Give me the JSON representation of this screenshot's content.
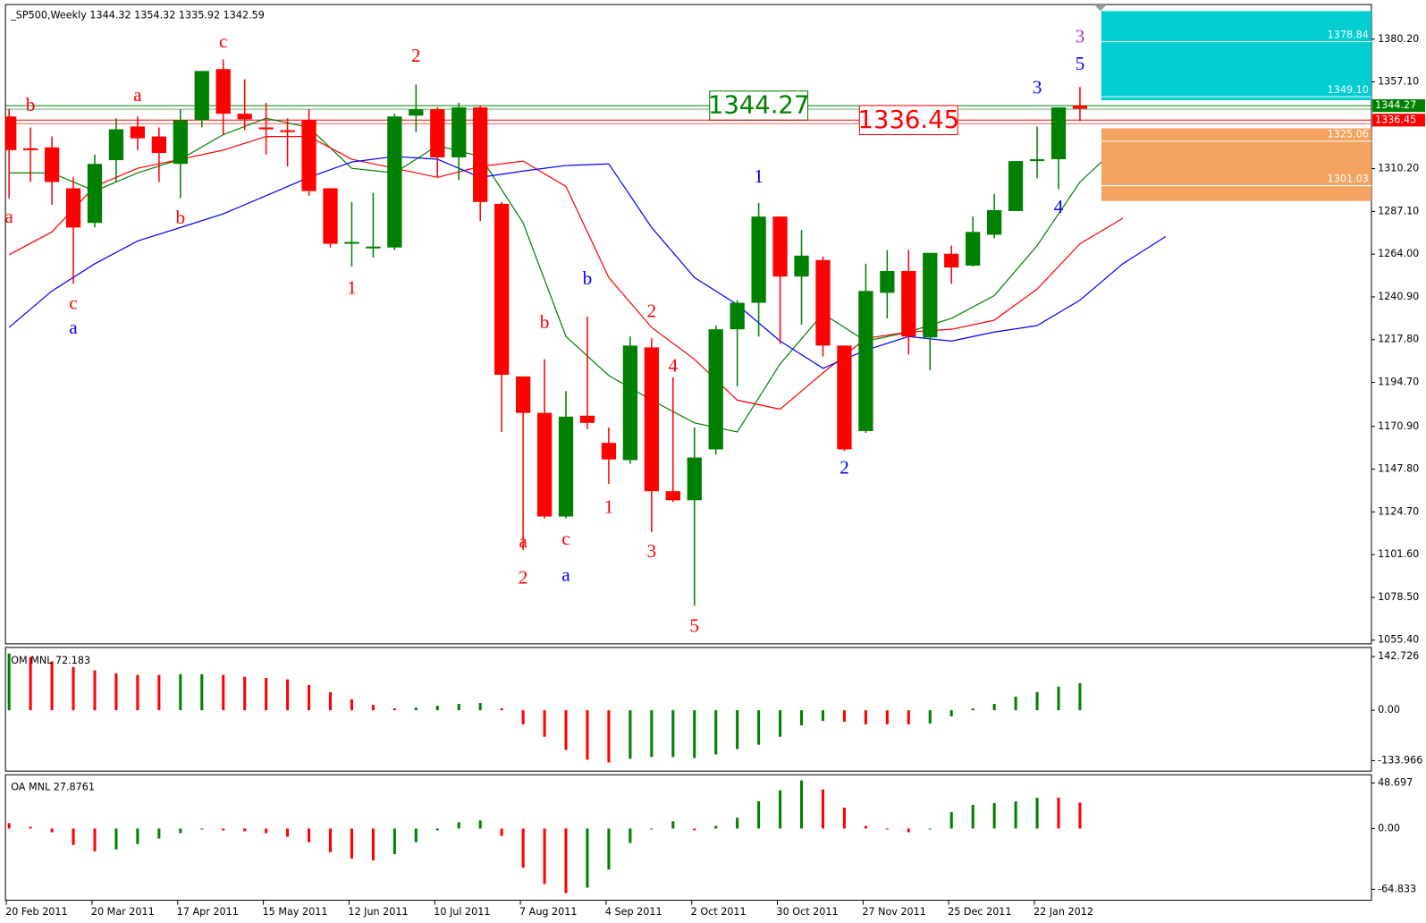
{
  "chart_data": [
    {
      "type": "candlestick",
      "title": "_SP500,Weekly 1344.32 1354.32 1335.92 1342.59",
      "categories": [
        "20 Feb 2011",
        null,
        null,
        null,
        "20 Mar 2011",
        null,
        null,
        null,
        "17 Apr 2011",
        null,
        null,
        null,
        "15 May 2011",
        null,
        null,
        null,
        "12 Jun 2011",
        null,
        null,
        null,
        "10 Jul 2011",
        null,
        null,
        null,
        "7 Aug 2011",
        null,
        null,
        null,
        "4 Sep 2011",
        null,
        null,
        null,
        "2 Oct 2011",
        null,
        null,
        null,
        "30 Oct 2011",
        null,
        null,
        null,
        "27 Nov 2011",
        null,
        null,
        null,
        "25 Dec 2011",
        null,
        null,
        null,
        "22 Jan 2012",
        null,
        null
      ],
      "open": [
        1338.4,
        1321.2,
        1321.7,
        1299.6,
        1280.9,
        1314.8,
        1333.0,
        1327.6,
        1312.8,
        1336.4,
        1364.0,
        1339.9,
        1332.5,
        1331.0,
        1336.4,
        1299.6,
        1270.1,
        1267.6,
        1267.6,
        1338.9,
        1342.3,
        1316.3,
        1343.3,
        1291.2,
        1197.9,
        1178.2,
        1122.2,
        1176.7,
        1162.0,
        1152.7,
        1213.6,
        1135.9,
        1131.0,
        1158.5,
        1223.4,
        1237.7,
        1284.3,
        1251.9,
        1260.8,
        1214.6,
        1168.4,
        1243.1,
        1254.9,
        1219.0,
        1264.2,
        1257.8,
        1274.5,
        1287.3,
        1314.8,
        1315.3,
        1344.32
      ],
      "high": [
        1342.3,
        1332.5,
        1327.6,
        1305.5,
        1317.8,
        1337.4,
        1338.4,
        1332.5,
        1342.3,
        1363.0,
        1369.3,
        1358.5,
        1345.8,
        1337.4,
        1342.3,
        1299.6,
        1292.2,
        1297.1,
        1339.9,
        1355.6,
        1343.3,
        1345.8,
        1344.3,
        1292.2,
        1197.9,
        1207.2,
        1190.0,
        1230.3,
        1170.3,
        1219.5,
        1218.5,
        1197.4,
        1170.3,
        1225.4,
        1239.1,
        1291.7,
        1284.3,
        1277.0,
        1262.7,
        1214.6,
        1258.8,
        1266.2,
        1266.2,
        1264.7,
        1268.6,
        1284.3,
        1296.6,
        1314.3,
        1333.0,
        1343.3,
        1354.32
      ],
      "low": [
        1294.2,
        1303.0,
        1290.7,
        1248.0,
        1278.4,
        1303.0,
        1320.2,
        1303.0,
        1294.2,
        1332.5,
        1328.6,
        1331.0,
        1317.8,
        1311.4,
        1295.6,
        1267.6,
        1257.3,
        1262.2,
        1266.2,
        1330.0,
        1305.5,
        1304.0,
        1281.9,
        1167.9,
        1104.0,
        1121.2,
        1121.2,
        1169.4,
        1139.9,
        1150.7,
        1113.8,
        1130.0,
        1074.0,
        1155.6,
        1192.5,
        1219.5,
        1215.6,
        1225.9,
        1208.7,
        1157.6,
        1167.4,
        1229.3,
        1209.7,
        1201.3,
        1248.0,
        1257.3,
        1272.6,
        1287.3,
        1305.0,
        1299.1,
        1335.92
      ],
      "close": [
        1320.2,
        1320.2,
        1303.0,
        1278.4,
        1312.8,
        1331.5,
        1326.6,
        1318.7,
        1336.4,
        1363.0,
        1339.9,
        1336.9,
        1331.5,
        1330.0,
        1298.1,
        1269.6,
        1270.6,
        1268.1,
        1338.4,
        1342.3,
        1316.3,
        1343.3,
        1292.2,
        1198.8,
        1178.2,
        1122.2,
        1176.2,
        1172.8,
        1153.1,
        1214.6,
        1135.9,
        1131.0,
        1154.1,
        1223.4,
        1237.7,
        1284.3,
        1251.9,
        1263.2,
        1214.6,
        1158.5,
        1244.1,
        1254.9,
        1219.5,
        1264.7,
        1256.8,
        1276.0,
        1287.8,
        1314.3,
        1315.3,
        1343.3,
        1342.59
      ],
      "up_color": "#008000",
      "down_color": "#ff0000",
      "ylim": [
        1053.4,
        1398.9
      ],
      "yticks": [
        {
          "value": 1380.2,
          "label": "1380.20"
        },
        {
          "value": 1357.1,
          "label": "1357.10"
        },
        {
          "value": 1310.2,
          "label": "1310.20"
        },
        {
          "value": 1287.1,
          "label": "1287.10"
        },
        {
          "value": 1264.0,
          "label": "1264.00"
        },
        {
          "value": 1240.9,
          "label": "1240.90"
        },
        {
          "value": 1217.8,
          "label": "1217.80"
        },
        {
          "value": 1194.7,
          "label": "1194.70"
        },
        {
          "value": 1170.9,
          "label": "1170.90"
        },
        {
          "value": 1147.8,
          "label": "1147.80"
        },
        {
          "value": 1124.7,
          "label": "1124.70"
        },
        {
          "value": 1101.6,
          "label": "1101.60"
        },
        {
          "value": 1078.5,
          "label": "1078.50"
        },
        {
          "value": 1055.4,
          "label": "1055.40"
        }
      ],
      "lines": [
        {
          "color": "#008000",
          "x": [
            0,
            2,
            4,
            6,
            8,
            10,
            12,
            14,
            16,
            18,
            20,
            22,
            24,
            26,
            28,
            30,
            32,
            34,
            36,
            38,
            40,
            42,
            44,
            46,
            48,
            50,
            51
          ],
          "values": [
            1307.9,
            1307.9,
            1298.1,
            1307.9,
            1315.3,
            1328.6,
            1337.4,
            1332.5,
            1310.4,
            1307.9,
            1322.7,
            1316.8,
            1280.9,
            1219.5,
            1198.4,
            1185.1,
            1172.8,
            1167.9,
            1204.7,
            1231.8,
            1217.0,
            1221.9,
            1229.3,
            1241.6,
            1268.6,
            1303.0,
            1313.8
          ]
        },
        {
          "color": "#ff0000",
          "x": [
            0,
            2,
            4,
            6,
            8,
            10,
            12,
            14,
            16,
            18,
            20,
            22,
            24,
            26,
            28,
            30,
            32,
            34,
            36,
            38,
            40,
            42,
            44,
            46,
            48,
            50,
            52
          ],
          "values": [
            1263.7,
            1276.0,
            1300.6,
            1310.4,
            1315.3,
            1320.2,
            1327.6,
            1327.6,
            1315.3,
            1310.4,
            1305.5,
            1311.4,
            1314.3,
            1300.6,
            1251.4,
            1224.4,
            1207.2,
            1185.1,
            1180.2,
            1199.8,
            1218.5,
            1221.9,
            1223.4,
            1228.3,
            1245.1,
            1269.6,
            1283.4
          ]
        },
        {
          "color": "#0000ff",
          "x": [
            0,
            2,
            4,
            6,
            8,
            10,
            12,
            14,
            16,
            18,
            20,
            22,
            24,
            26,
            28,
            30,
            32,
            34,
            36,
            38,
            40,
            42,
            44,
            46,
            48,
            50,
            52,
            54
          ],
          "values": [
            1224.4,
            1244.1,
            1258.8,
            1271.1,
            1278.4,
            1285.8,
            1295.6,
            1305.5,
            1313.8,
            1316.8,
            1315.3,
            1305.5,
            1308.9,
            1311.9,
            1312.8,
            1278.4,
            1251.4,
            1236.7,
            1217.0,
            1202.3,
            1212.1,
            1219.5,
            1217.0,
            1221.9,
            1225.4,
            1239.1,
            1258.8,
            1273.5
          ]
        }
      ],
      "annotations": [
        {
          "text": "a",
          "x": 0,
          "y": 1283.4,
          "color": "#ff0000"
        },
        {
          "text": "b",
          "x": 1,
          "y": 1343.8,
          "color": "#ff0000"
        },
        {
          "text": "c",
          "x": 3,
          "y": 1236.7,
          "color": "#ff0000"
        },
        {
          "text": "a",
          "x": 3,
          "y": 1223.4,
          "color": "#0000ff"
        },
        {
          "text": "a",
          "x": 6,
          "y": 1349.2,
          "color": "#ff0000"
        },
        {
          "text": "b",
          "x": 8,
          "y": 1282.9,
          "color": "#ff0000"
        },
        {
          "text": "c",
          "x": 10,
          "y": 1378.2,
          "color": "#ff0000"
        },
        {
          "text": "1",
          "x": 16,
          "y": 1245.0,
          "color": "#ff0000"
        },
        {
          "text": "2",
          "x": 19,
          "y": 1370.3,
          "color": "#ff0000"
        },
        {
          "text": "a",
          "x": 24,
          "y": 1108.0,
          "color": "#ff0000"
        },
        {
          "text": "2",
          "x": 24,
          "y": 1088.3,
          "color": "#ff0000"
        },
        {
          "text": "b",
          "x": 25,
          "y": 1226.4,
          "color": "#ff0000"
        },
        {
          "text": "c",
          "x": 26,
          "y": 1109.4,
          "color": "#ff0000"
        },
        {
          "text": "a",
          "x": 26,
          "y": 1089.8,
          "color": "#0000ff"
        },
        {
          "text": "b",
          "x": 27,
          "y": 1250.0,
          "color": "#0000ff"
        },
        {
          "text": "1",
          "x": 28,
          "y": 1126.6,
          "color": "#ff0000"
        },
        {
          "text": "2",
          "x": 30,
          "y": 1232.3,
          "color": "#ff0000"
        },
        {
          "text": "3",
          "x": 30,
          "y": 1102.6,
          "color": "#ff0000"
        },
        {
          "text": "4",
          "x": 31,
          "y": 1202.8,
          "color": "#ff0000"
        },
        {
          "text": "5",
          "x": 32,
          "y": 1062.2,
          "color": "#ff0000"
        },
        {
          "text": "1",
          "x": 35,
          "y": 1305.0,
          "color": "#0000ff"
        },
        {
          "text": "2",
          "x": 39,
          "y": 1147.7,
          "color": "#0000ff"
        },
        {
          "text": "3",
          "x": 48,
          "y": 1353.2,
          "color": "#0000ff"
        },
        {
          "text": "4",
          "x": 49,
          "y": 1288.8,
          "color": "#0000ff"
        },
        {
          "text": "5",
          "x": 50,
          "y": 1365.9,
          "color": "#0000ff"
        },
        {
          "text": "3",
          "x": 50,
          "y": 1380.7,
          "color": "#9933cc"
        }
      ],
      "levels": [
        {
          "value": 1344.27,
          "color": "#008000",
          "label_at": 35
        },
        {
          "value": 1336.45,
          "color": "#ff0000",
          "label_at": 42
        }
      ],
      "zones": [
        {
          "from": 1347.2,
          "to": 1395.4,
          "x_from": 51,
          "color": "#00ced1",
          "levels": [
            1378.84,
            {
              "value": 1349.1,
              "label": "1349.10"
            }
          ]
        },
        {
          "from": 1292.7,
          "to": 1332.0,
          "x_from": 51,
          "color": "#f4a460",
          "levels": [
            1325.06,
            1301.03
          ]
        }
      ]
    },
    {
      "type": "bar",
      "title": "OM MNL 72.183",
      "values": [
        151,
        141.6,
        130,
        115,
        106,
        98,
        94,
        94,
        96,
        96,
        94,
        89,
        86,
        82,
        67,
        48,
        29,
        14,
        5,
        7,
        12,
        17,
        19,
        5,
        -37.6,
        -70.5,
        -105.8,
        -131.6,
        -138.7,
        -129.3,
        -124.6,
        -124.6,
        -126.9,
        -117.5,
        -103.4,
        -91.7,
        -70.5,
        -40.0,
        -28.2,
        -30.6,
        -37.6,
        -37.6,
        -37.6,
        -35.3,
        -16.5,
        4.8,
        16.9,
        36.3,
        48.4,
        62.9,
        72.183
      ],
      "colors": [
        "#008000",
        "#ff0000",
        "#ff0000",
        "#ff0000",
        "#ff0000",
        "#ff0000",
        "#ff0000",
        "#ff0000",
        "#008000",
        "#008000",
        "#ff0000",
        "#ff0000",
        "#ff0000",
        "#ff0000",
        "#ff0000",
        "#ff0000",
        "#ff0000",
        "#ff0000",
        "#ff0000",
        "#008000",
        "#008000",
        "#008000",
        "#008000",
        "#ff0000",
        "#ff0000",
        "#ff0000",
        "#ff0000",
        "#ff0000",
        "#ff0000",
        "#008000",
        "#008000",
        "#008000",
        "#008000",
        "#008000",
        "#008000",
        "#008000",
        "#008000",
        "#008000",
        "#008000",
        "#ff0000",
        "#ff0000",
        "#ff0000",
        "#ff0000",
        "#008000",
        "#008000",
        "#008000",
        "#008000",
        "#008000",
        "#008000",
        "#008000",
        "#008000"
      ],
      "ylim": [
        -162,
        167
      ],
      "yticks": [
        142.726,
        {
          "value": 0,
          "label": "0.00"
        },
        -133.966
      ]
    },
    {
      "type": "bar",
      "title": "OA MNL 27.8761",
      "values": [
        5.8,
        1.9,
        -3.9,
        -17.5,
        -24.3,
        -22.3,
        -16.5,
        -10.7,
        -4.9,
        -1,
        -1.9,
        -2.9,
        -4.9,
        -8.7,
        -14.6,
        -25.2,
        -32.0,
        -34.0,
        -27.2,
        -14.6,
        -1.9,
        6.8,
        8.7,
        -7.8,
        -41.7,
        -59.2,
        -68.9,
        -63.1,
        -43.7,
        -15.5,
        -1,
        7.8,
        -1.9,
        2.9,
        11.6,
        29.1,
        40.8,
        51.4,
        41.7,
        22.3,
        2.9,
        -1,
        -3.9,
        -1,
        17.5,
        25.2,
        27.2,
        29.1,
        33.0,
        33.0,
        27.8761
      ],
      "colors": [
        "#ff0000",
        "#ff0000",
        "#ff0000",
        "#ff0000",
        "#ff0000",
        "#008000",
        "#008000",
        "#008000",
        "#008000",
        "#008000",
        "#ff0000",
        "#ff0000",
        "#ff0000",
        "#ff0000",
        "#ff0000",
        "#ff0000",
        "#ff0000",
        "#ff0000",
        "#008000",
        "#008000",
        "#008000",
        "#008000",
        "#008000",
        "#ff0000",
        "#ff0000",
        "#ff0000",
        "#ff0000",
        "#008000",
        "#008000",
        "#008000",
        "#008000",
        "#008000",
        "#ff0000",
        "#008000",
        "#008000",
        "#008000",
        "#008000",
        "#008000",
        "#ff0000",
        "#ff0000",
        "#ff0000",
        "#ff0000",
        "#ff0000",
        "#008000",
        "#008000",
        "#008000",
        "#008000",
        "#008000",
        "#008000",
        "#ff0000",
        "#ff0000"
      ],
      "ylim": [
        -76.5,
        57.4
      ],
      "yticks": [
        48.697,
        {
          "value": 0,
          "label": "0.00"
        },
        -64.833
      ]
    }
  ]
}
